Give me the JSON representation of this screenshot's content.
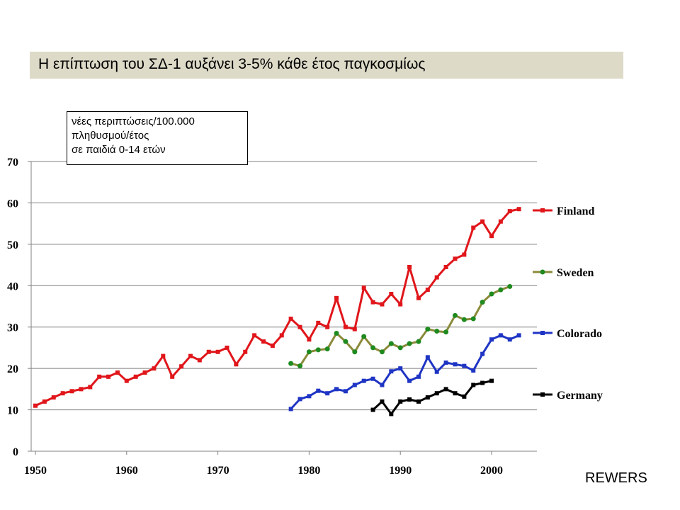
{
  "slide": {
    "title": "Η επίπτωση του ΣΔ-1  αυξάνει 3-5% κάθε έτος παγκοσμίως",
    "note_lines": [
      "νέες περιπτώσεις/100.000",
      "πληθυσμού/έτος",
      "σε παιδιά 0-14 ετών"
    ],
    "credit": "REWERS"
  },
  "chart_data": {
    "type": "line",
    "x_ticks": [
      "1950",
      "1960",
      "1970",
      "1980",
      "1990",
      "2000"
    ],
    "y_ticks": [
      "0",
      "10",
      "20",
      "30",
      "40",
      "50",
      "60",
      "70"
    ],
    "xlim": [
      1950,
      2005
    ],
    "ylim": [
      0,
      70
    ],
    "grid": "horizontal",
    "legend_placement": "right",
    "series": [
      {
        "name": "Finland",
        "color": "#e0161b",
        "marker": "square",
        "x": [
          1950,
          1951,
          1952,
          1953,
          1954,
          1955,
          1956,
          1957,
          1958,
          1959,
          1960,
          1961,
          1962,
          1963,
          1964,
          1965,
          1966,
          1967,
          1968,
          1969,
          1970,
          1971,
          1972,
          1973,
          1974,
          1975,
          1976,
          1977,
          1978,
          1979,
          1980,
          1981,
          1982,
          1983,
          1984,
          1985,
          1986,
          1987,
          1988,
          1989,
          1990,
          1991,
          1992,
          1993,
          1994,
          1995,
          1996,
          1997,
          1998,
          1999,
          2000,
          2001,
          2002,
          2003
        ],
        "y": [
          11,
          12,
          13,
          14,
          14.5,
          15,
          15.5,
          18,
          18,
          19,
          17,
          18,
          19,
          20,
          23,
          18,
          20.5,
          23,
          22,
          24,
          24,
          25,
          21,
          24,
          28,
          26.5,
          25.5,
          28,
          32,
          30,
          27,
          31,
          30,
          37,
          30,
          29.5,
          39.5,
          36,
          35.5,
          38,
          35.5,
          44.5,
          37,
          39,
          42,
          44.5,
          46.5,
          47.5,
          54,
          55.5,
          52,
          55.5,
          58,
          58.5
        ]
      },
      {
        "name": "Sweden",
        "color": "#8a8a3a",
        "marker_color": "#1f8a1f",
        "marker": "circle",
        "x": [
          1978,
          1979,
          1980,
          1981,
          1982,
          1983,
          1984,
          1985,
          1986,
          1987,
          1988,
          1989,
          1990,
          1991,
          1992,
          1993,
          1994,
          1995,
          1996,
          1997,
          1998,
          1999,
          2000,
          2001,
          2002
        ],
        "y": [
          21.2,
          20.6,
          24,
          24.5,
          24.7,
          28.5,
          26.5,
          24,
          27.7,
          25,
          24,
          26,
          25,
          26,
          26.5,
          29.5,
          29,
          28.8,
          32.8,
          31.8,
          32,
          36,
          38,
          39,
          39.8
        ]
      },
      {
        "name": "Colorado",
        "color": "#1f35c4",
        "marker": "square",
        "x": [
          1978,
          1979,
          1980,
          1981,
          1982,
          1983,
          1984,
          1985,
          1986,
          1987,
          1988,
          1989,
          1990,
          1991,
          1992,
          1993,
          1994,
          1995,
          1996,
          1997,
          1998,
          1999,
          2000,
          2001,
          2002,
          2003
        ],
        "y": [
          10.2,
          12.6,
          13.3,
          14.6,
          14,
          15,
          14.5,
          16,
          17,
          17.5,
          16,
          19.3,
          20,
          17,
          18,
          22.7,
          19.2,
          21.4,
          21,
          20.6,
          19.5,
          23.5,
          27,
          28,
          27,
          28
        ]
      },
      {
        "name": "Germany",
        "color": "#000000",
        "marker": "square",
        "x": [
          1987,
          1988,
          1989,
          1990,
          1991,
          1992,
          1993,
          1994,
          1995,
          1996,
          1997,
          1998,
          1999,
          2000
        ],
        "y": [
          10,
          12,
          9,
          12,
          12.5,
          12,
          13,
          14,
          15,
          14,
          13.2,
          16,
          16.5,
          17
        ]
      }
    ]
  }
}
